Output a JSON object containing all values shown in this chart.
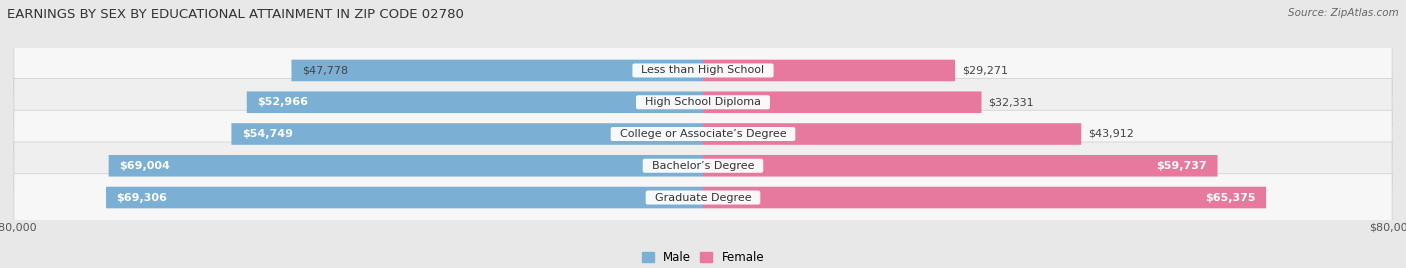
{
  "title": "EARNINGS BY SEX BY EDUCATIONAL ATTAINMENT IN ZIP CODE 02780",
  "source": "Source: ZipAtlas.com",
  "categories": [
    "Less than High School",
    "High School Diploma",
    "College or Associate’s Degree",
    "Bachelor’s Degree",
    "Graduate Degree"
  ],
  "male_values": [
    47778,
    52966,
    54749,
    69004,
    69306
  ],
  "female_values": [
    29271,
    32331,
    43912,
    59737,
    65375
  ],
  "max_value": 80000,
  "male_color": "#7bafd4",
  "female_color": "#e8799e",
  "row_colors": [
    "#f7f7f7",
    "#efefef",
    "#f7f7f7",
    "#efefef",
    "#f7f7f7"
  ],
  "background_color": "#e8e8e8",
  "title_fontsize": 9.5,
  "label_fontsize": 8,
  "category_fontsize": 8,
  "axis_label_fontsize": 8,
  "legend_fontsize": 8.5
}
